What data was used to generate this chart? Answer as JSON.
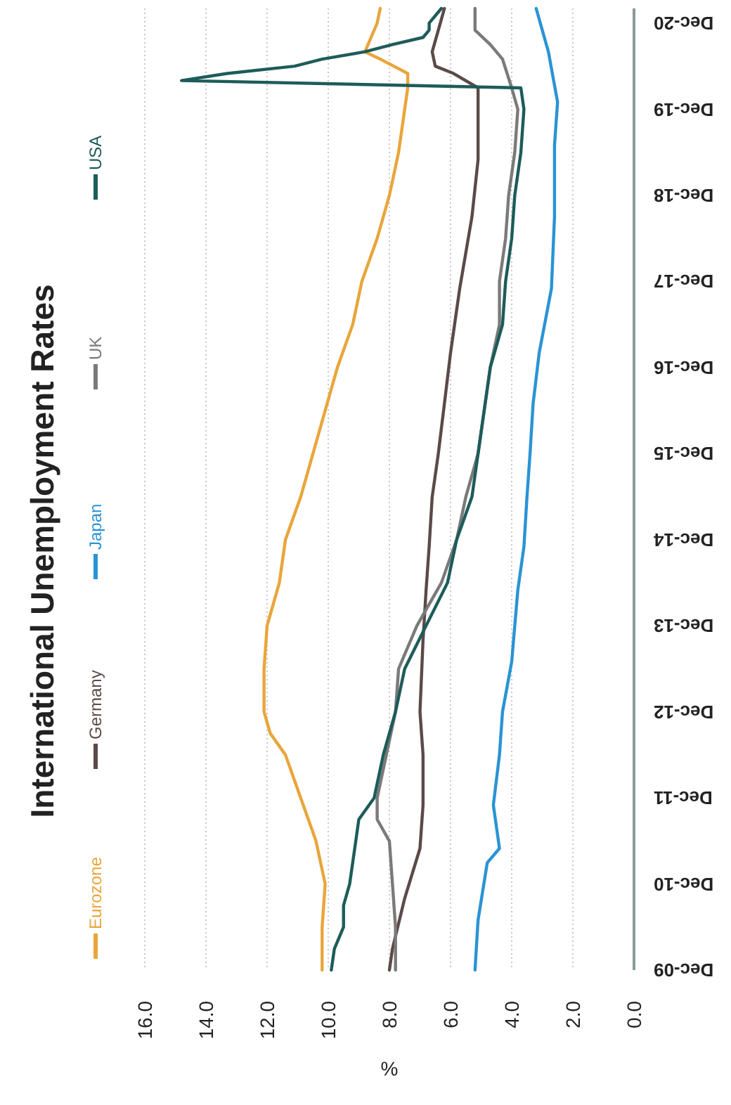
{
  "chart_data": {
    "type": "line",
    "orientation": "horizontal",
    "title": "International Unemployment Rates",
    "xlabel": "%",
    "legend": "left",
    "grid": "x",
    "line_style": "solid",
    "marker": "none",
    "ylim": [
      "2009-12",
      "2021-02"
    ],
    "xlim": [
      16,
      0
    ],
    "yticks": [
      {
        "value": "2009-12",
        "label": "Dec-09"
      },
      {
        "value": "2010-12",
        "label": "Dec-10"
      },
      {
        "value": "2011-12",
        "label": "Dec-11"
      },
      {
        "value": "2012-12",
        "label": "Dec-12"
      },
      {
        "value": "2013-12",
        "label": "Dec-13"
      },
      {
        "value": "2014-12",
        "label": "Dec-14"
      },
      {
        "value": "2015-12",
        "label": "Dec-15"
      },
      {
        "value": "2016-12",
        "label": "Dec-16"
      },
      {
        "value": "2017-12",
        "label": "Dec-17"
      },
      {
        "value": "2018-12",
        "label": "Dec-18"
      },
      {
        "value": "2019-12",
        "label": "Dec-19"
      },
      {
        "value": "2020-12",
        "label": "Dec-20"
      }
    ],
    "xticks": [
      {
        "value": 16,
        "label": "16.0"
      },
      {
        "value": 14,
        "label": "14.0"
      },
      {
        "value": 12,
        "label": "12.0"
      },
      {
        "value": 10,
        "label": "10.0"
      },
      {
        "value": 8,
        "label": "8.0"
      },
      {
        "value": 6,
        "label": "6.0"
      },
      {
        "value": 4,
        "label": "4.0"
      },
      {
        "value": 2,
        "label": "2.0"
      },
      {
        "value": 0,
        "label": "0.0"
      }
    ],
    "series": [
      {
        "name": "Eurozone",
        "color": "#e9a53b",
        "x": [
          "2009-12",
          "2010-06",
          "2010-12",
          "2011-06",
          "2011-12",
          "2012-06",
          "2012-09",
          "2012-12",
          "2013-06",
          "2013-12",
          "2014-06",
          "2014-12",
          "2015-06",
          "2015-12",
          "2016-06",
          "2016-12",
          "2017-06",
          "2017-12",
          "2018-06",
          "2018-12",
          "2019-06",
          "2019-12",
          "2020-03",
          "2020-05",
          "2020-07",
          "2020-08",
          "2020-10",
          "2020-12",
          "2021-02"
        ],
        "values": [
          10.2,
          10.2,
          10.1,
          10.4,
          10.9,
          11.4,
          11.9,
          12.1,
          12.1,
          12.0,
          11.6,
          11.4,
          10.9,
          10.5,
          10.1,
          9.7,
          9.2,
          8.9,
          8.4,
          8.0,
          7.7,
          7.5,
          7.4,
          7.4,
          8.3,
          8.8,
          8.6,
          8.4,
          8.3
        ]
      },
      {
        "name": "Germany",
        "color": "#5b4a48",
        "x": [
          "2009-12",
          "2010-03",
          "2010-10",
          "2011-05",
          "2011-11",
          "2012-06",
          "2012-12",
          "2013-10",
          "2014-05",
          "2014-11",
          "2015-06",
          "2015-12",
          "2016-07",
          "2017-02",
          "2017-11",
          "2018-09",
          "2019-05",
          "2020-03",
          "2020-05",
          "2020-06",
          "2020-08",
          "2020-11",
          "2021-02"
        ],
        "values": [
          8.0,
          7.9,
          7.5,
          7.0,
          6.9,
          6.9,
          7.0,
          6.9,
          6.8,
          6.7,
          6.6,
          6.4,
          6.2,
          6.0,
          5.7,
          5.3,
          5.1,
          5.1,
          5.9,
          6.5,
          6.6,
          6.4,
          6.2
        ]
      },
      {
        "name": "Japan",
        "color": "#2a93d5",
        "x": [
          "2009-12",
          "2010-07",
          "2011-03",
          "2011-05",
          "2011-11",
          "2012-06",
          "2012-12",
          "2013-07",
          "2014-05",
          "2014-11",
          "2015-06",
          "2015-12",
          "2016-07",
          "2017-02",
          "2017-11",
          "2018-09",
          "2019-07",
          "2020-01",
          "2020-08",
          "2021-02"
        ],
        "values": [
          5.2,
          5.1,
          4.8,
          4.4,
          4.6,
          4.4,
          4.3,
          4.0,
          3.8,
          3.6,
          3.5,
          3.4,
          3.3,
          3.1,
          2.7,
          2.6,
          2.6,
          2.5,
          2.8,
          3.2
        ]
      },
      {
        "name": "UK",
        "color": "#7a7a7a",
        "x": [
          "2009-12",
          "2010-06",
          "2010-12",
          "2011-06",
          "2011-09",
          "2011-12",
          "2012-06",
          "2012-12",
          "2013-06",
          "2013-12",
          "2014-06",
          "2014-12",
          "2015-06",
          "2015-12",
          "2016-06",
          "2016-12",
          "2017-06",
          "2017-12",
          "2018-06",
          "2018-12",
          "2019-06",
          "2019-12",
          "2020-03",
          "2020-07",
          "2020-09",
          "2020-11",
          "2021-02"
        ],
        "values": [
          7.8,
          7.8,
          7.9,
          8.0,
          8.4,
          8.4,
          8.1,
          7.8,
          7.7,
          7.1,
          6.3,
          5.8,
          5.5,
          5.1,
          4.9,
          4.7,
          4.4,
          4.4,
          4.2,
          4.1,
          3.9,
          3.8,
          4.0,
          4.3,
          4.7,
          5.2,
          5.2
        ]
      },
      {
        "name": "USA",
        "color": "#1d5c5a",
        "x": [
          "2009-12",
          "2010-03",
          "2010-06",
          "2010-09",
          "2010-12",
          "2011-06",
          "2011-09",
          "2011-12",
          "2012-06",
          "2012-12",
          "2013-06",
          "2013-12",
          "2014-06",
          "2014-12",
          "2015-06",
          "2015-12",
          "2016-06",
          "2016-12",
          "2017-06",
          "2017-12",
          "2018-06",
          "2018-12",
          "2019-06",
          "2019-12",
          "2020-03",
          "2020-04",
          "2020-05",
          "2020-06",
          "2020-07",
          "2020-08",
          "2020-09",
          "2020-10",
          "2020-11",
          "2020-12",
          "2021-02"
        ],
        "values": [
          9.9,
          9.8,
          9.5,
          9.5,
          9.3,
          9.1,
          9.0,
          8.5,
          8.2,
          7.8,
          7.5,
          6.8,
          6.1,
          5.8,
          5.3,
          5.1,
          4.9,
          4.7,
          4.3,
          4.2,
          4.0,
          3.9,
          3.7,
          3.6,
          3.7,
          14.8,
          13.3,
          11.1,
          10.2,
          8.8,
          7.9,
          6.9,
          6.7,
          6.7,
          6.3
        ]
      }
    ]
  }
}
